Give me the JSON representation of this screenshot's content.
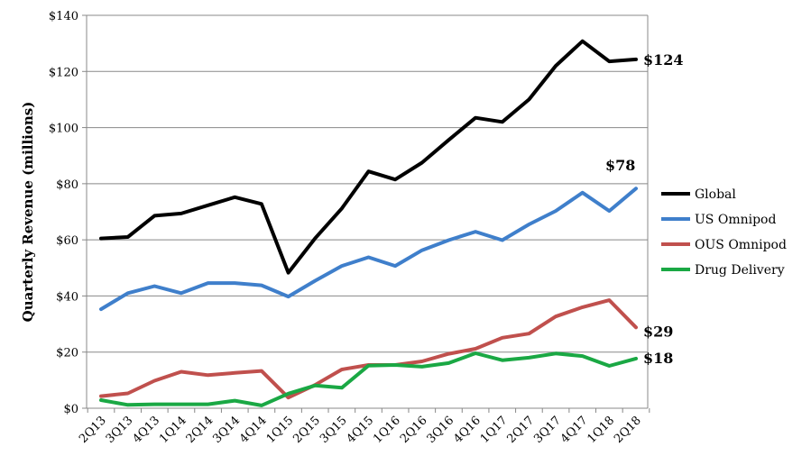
{
  "chart_data": {
    "type": "line",
    "title": "",
    "xlabel": "",
    "ylabel": "Quarterly Revenue (millions)",
    "ylim": [
      0,
      140
    ],
    "yticks": [
      "$0",
      "$20",
      "$40",
      "$60",
      "$80",
      "$100",
      "$120",
      "$140"
    ],
    "grid": true,
    "legend_position": "right",
    "categories": [
      "2Q13",
      "3Q13",
      "4Q13",
      "1Q14",
      "2Q14",
      "3Q14",
      "4Q14",
      "1Q15",
      "2Q15",
      "3Q15",
      "4Q15",
      "1Q16",
      "2Q16",
      "3Q16",
      "4Q16",
      "1Q17",
      "2Q17",
      "3Q17",
      "4Q17",
      "1Q18",
      "2Q18"
    ],
    "series": [
      {
        "name": "Global",
        "color": "#000000",
        "values": [
          60.5,
          61,
          68.6,
          69.4,
          72.3,
          75.2,
          72.8,
          48.3,
          60.5,
          71.2,
          84.4,
          81.5,
          87.5,
          95.6,
          103.5,
          102,
          110,
          122,
          130.8,
          123.6,
          124.3
        ],
        "end_label": "$124"
      },
      {
        "name": "US Omnipod",
        "color": "#3f7fcb",
        "values": [
          35.3,
          41,
          43.5,
          41,
          44.6,
          44.6,
          43.8,
          39.8,
          45.4,
          50.7,
          53.8,
          50.7,
          56.3,
          59.9,
          62.9,
          59.9,
          65.5,
          70.3,
          76.8,
          70.3,
          78.3
        ],
        "end_label": "$78"
      },
      {
        "name": "OUS Omnipod",
        "color": "#c0504d",
        "values": [
          4.3,
          5.3,
          9.8,
          13,
          11.8,
          12.6,
          13.3,
          3.8,
          8.3,
          13.8,
          15.4,
          15.4,
          16.7,
          19.4,
          21.2,
          25.1,
          26.6,
          32.7,
          36,
          38.5,
          28.8
        ],
        "end_label": "$29"
      },
      {
        "name": "Drug Delivery",
        "color": "#1aa844",
        "values": [
          2.9,
          1.2,
          1.4,
          1.4,
          1.4,
          2.7,
          1,
          5.2,
          8.1,
          7.3,
          15.2,
          15.4,
          14.8,
          16.1,
          19.6,
          17.1,
          18,
          19.5,
          18.6,
          15.1,
          17.7
        ],
        "end_label": "$18"
      }
    ]
  }
}
